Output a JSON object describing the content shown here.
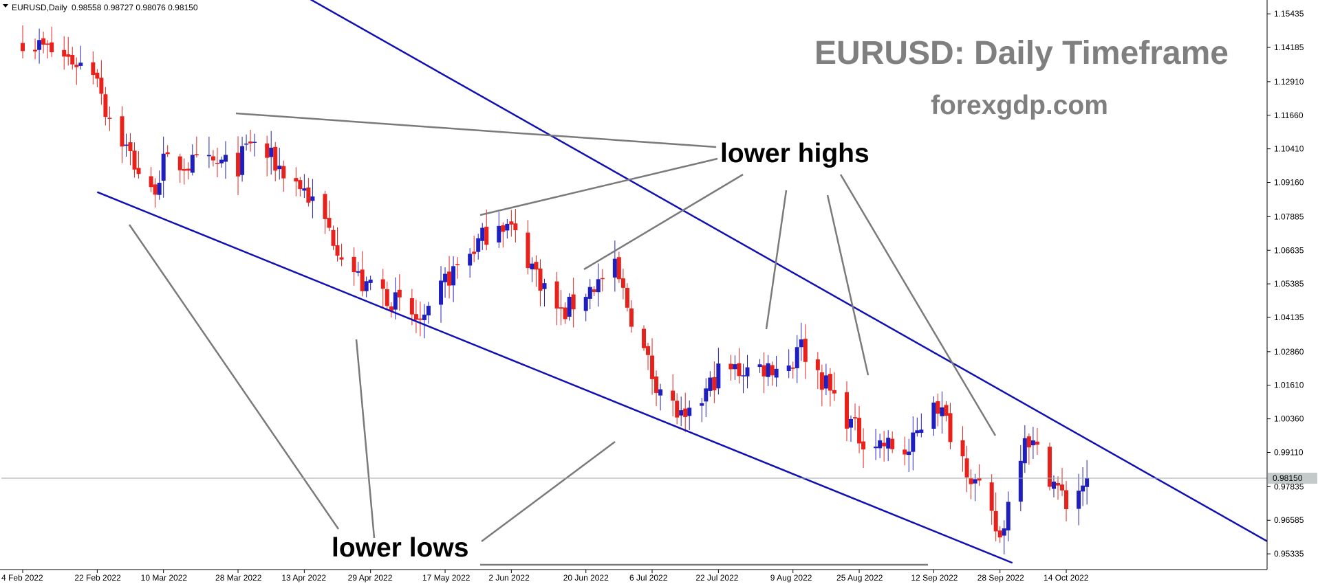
{
  "header": {
    "triangle_icon": "dropdown-triangle-icon",
    "symbol": "EURUSD,Daily",
    "ohlc": "0.98558 0.98727 0.98076 0.98150"
  },
  "watermark": {
    "title": "EURUSD: Daily Timeframe",
    "site": "forexgdp.com"
  },
  "annotations": {
    "lower_highs": "lower highs",
    "lower_lows": "lower lows"
  },
  "colors": {
    "bull": "#1f1fbf",
    "bear": "#e8211b",
    "channel": "#1010b4",
    "pointer": "#7a7a7a",
    "current_price_line": "#9aa5a5",
    "price_label_bg": "#c4c9c9"
  },
  "chart_data": {
    "type": "candlestick",
    "symbol": "EURUSD",
    "timeframe": "Daily",
    "title": "EURUSD: Daily Timeframe",
    "ylim": [
      0.9475,
      1.1595
    ],
    "y_ticks": [
      "1.15435",
      "1.14185",
      "1.12910",
      "1.11660",
      "1.10410",
      "1.09160",
      "1.07885",
      "1.06635",
      "1.05385",
      "1.04135",
      "1.02860",
      "1.01610",
      "1.00360",
      "0.99110",
      "0.97835",
      "0.96585",
      "0.95335"
    ],
    "x_ticks": [
      {
        "label": "4 Feb 2022",
        "date": "2022-02-04"
      },
      {
        "label": "22 Feb 2022",
        "date": "2022-02-22"
      },
      {
        "label": "10 Mar 2022",
        "date": "2022-03-10"
      },
      {
        "label": "28 Mar 2022",
        "date": "2022-03-28"
      },
      {
        "label": "13 Apr 2022",
        "date": "2022-04-13"
      },
      {
        "label": "29 Apr 2022",
        "date": "2022-04-29"
      },
      {
        "label": "17 May 2022",
        "date": "2022-05-17"
      },
      {
        "label": "2 Jun 2022",
        "date": "2022-06-02"
      },
      {
        "label": "20 Jun 2022",
        "date": "2022-06-20"
      },
      {
        "label": "6 Jul 2022",
        "date": "2022-07-06"
      },
      {
        "label": "22 Jul 2022",
        "date": "2022-07-22"
      },
      {
        "label": "9 Aug 2022",
        "date": "2022-08-09"
      },
      {
        "label": "25 Aug 2022",
        "date": "2022-08-25"
      },
      {
        "label": "12 Sep 2022",
        "date": "2022-09-12"
      },
      {
        "label": "28 Sep 2022",
        "date": "2022-09-28"
      },
      {
        "label": "14 Oct 2022",
        "date": "2022-10-14"
      }
    ],
    "current_price": "0.98150",
    "series": [
      {
        "date": "2022-02-04",
        "close": 1.145
      },
      {
        "date": "2022-02-22",
        "close": 1.133
      },
      {
        "date": "2022-02-24",
        "close": 1.119
      },
      {
        "date": "2022-03-07",
        "close": 1.087
      },
      {
        "date": "2022-03-10",
        "close": 1.0985
      },
      {
        "date": "2022-03-28",
        "close": 1.098
      },
      {
        "date": "2022-03-31",
        "close": 1.107
      },
      {
        "date": "2022-04-13",
        "close": 1.089
      },
      {
        "date": "2022-04-28",
        "close": 1.051
      },
      {
        "date": "2022-04-29",
        "close": 1.0545
      },
      {
        "date": "2022-05-12",
        "close": 1.038
      },
      {
        "date": "2022-05-17",
        "close": 1.055
      },
      {
        "date": "2022-05-30",
        "close": 1.078
      },
      {
        "date": "2022-06-02",
        "close": 1.074
      },
      {
        "date": "2022-06-14",
        "close": 1.042
      },
      {
        "date": "2022-06-20",
        "close": 1.051
      },
      {
        "date": "2022-06-27",
        "close": 1.059
      },
      {
        "date": "2022-07-06",
        "close": 1.02
      },
      {
        "date": "2022-07-14",
        "close": 1.001
      },
      {
        "date": "2022-07-22",
        "close": 1.021
      },
      {
        "date": "2022-08-09",
        "close": 1.024
      },
      {
        "date": "2022-08-10",
        "close": 1.033
      },
      {
        "date": "2022-08-25",
        "close": 0.997
      },
      {
        "date": "2022-09-06",
        "close": 0.991
      },
      {
        "date": "2022-09-12",
        "close": 1.012
      },
      {
        "date": "2022-09-21",
        "close": 0.983
      },
      {
        "date": "2022-09-28",
        "close": 0.959
      },
      {
        "date": "2022-10-04",
        "close": 0.999
      },
      {
        "date": "2022-10-14",
        "close": 0.972
      },
      {
        "date": "2022-10-19",
        "close": 0.9815
      }
    ],
    "channel": {
      "upper": [
        {
          "date": "2022-03-28",
          "price": 1.175
        },
        {
          "date": "2022-12-05",
          "price": 0.955
        }
      ],
      "lower": [
        {
          "date": "2022-02-22",
          "price": 1.088
        },
        {
          "date": "2022-10-01",
          "price": 0.95
        }
      ]
    },
    "grid": false
  }
}
